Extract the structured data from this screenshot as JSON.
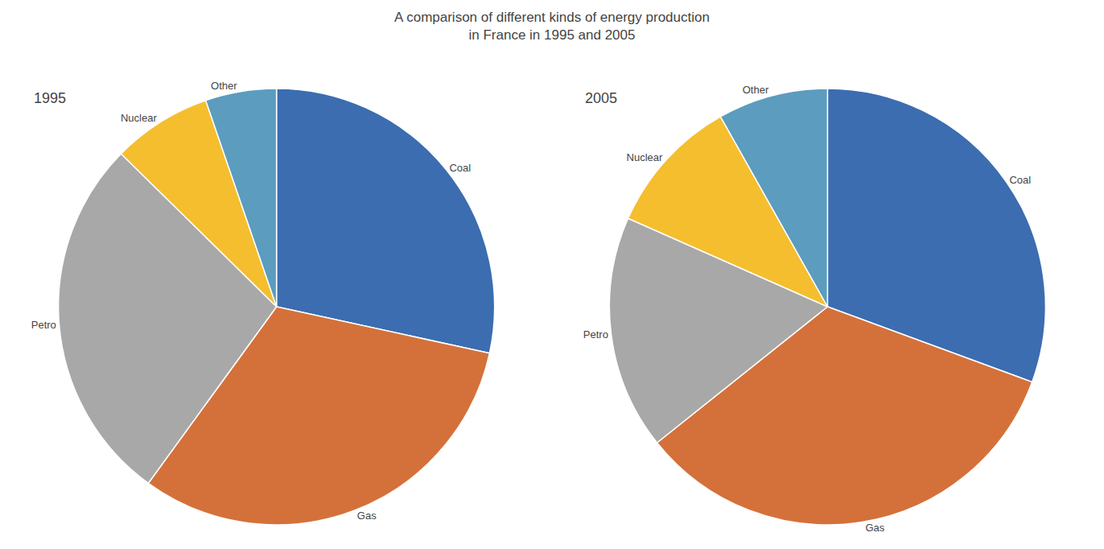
{
  "chart_data": {
    "type": "pie",
    "title": "A comparison of different kinds of energy production\nin France in 1995 and 2005",
    "categories": [
      "Coal",
      "Gas",
      "Petro",
      "Nuclear",
      "Other"
    ],
    "colors": [
      "#3B6DB0",
      "#D4713A",
      "#A8A8A8",
      "#F5BE2E",
      "#5B9CBF"
    ],
    "series": [
      {
        "name": "1995",
        "values": [
          27,
          30,
          26,
          7,
          5
        ]
      },
      {
        "name": "2005",
        "values": [
          30,
          33,
          17,
          10,
          8
        ]
      }
    ],
    "legend": false
  }
}
